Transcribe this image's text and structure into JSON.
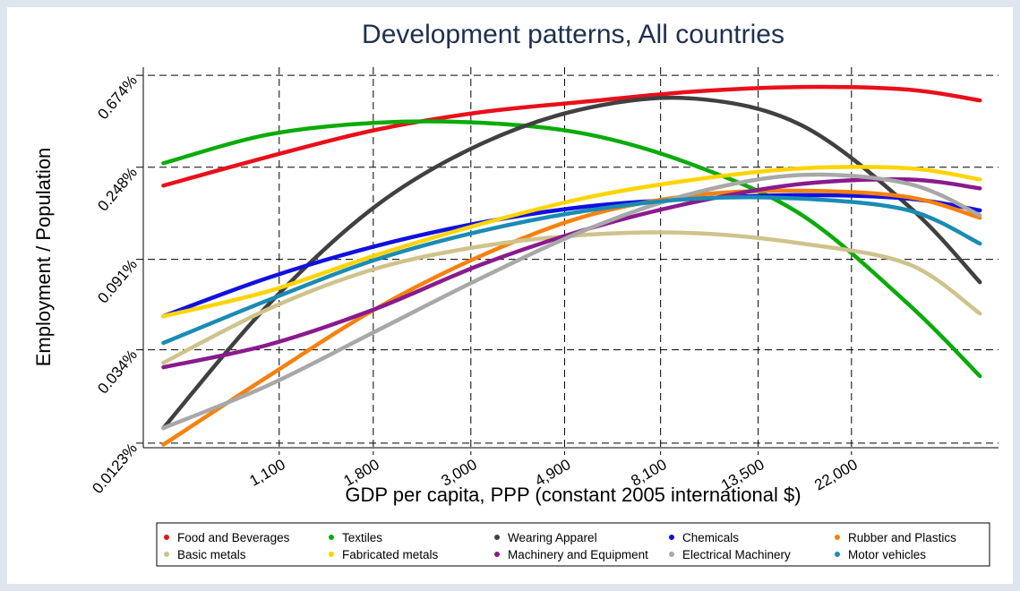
{
  "chart_data": {
    "type": "line",
    "title": "Development patterns, All countries",
    "x_label": "GDP per capita, PPP (constant 2005 international $)",
    "y_label": "Employment / Population",
    "x_scale": "log",
    "y_scale": "log",
    "grid": true,
    "legend": "bottom",
    "xlim": [
      540,
      47500
    ],
    "xticks": [
      {
        "value": 1100,
        "label": "1,100"
      },
      {
        "value": 1800,
        "label": "1,800"
      },
      {
        "value": 3000,
        "label": "3,000"
      },
      {
        "value": 4900,
        "label": "4,900"
      },
      {
        "value": 8100,
        "label": "8,100"
      },
      {
        "value": 13500,
        "label": "13,500"
      },
      {
        "value": 22000,
        "label": "22,000"
      }
    ],
    "ylim": [
      0.0117,
      0.737
    ],
    "yticks": [
      {
        "value": 0.0123,
        "label": "0.0123%"
      },
      {
        "value": 0.034,
        "label": "0.034%"
      },
      {
        "value": 0.091,
        "label": "0.091%"
      },
      {
        "value": 0.248,
        "label": "0.248%"
      },
      {
        "value": 0.674,
        "label": "0.674%"
      }
    ],
    "x": [
      600,
      1040,
      1820,
      3180,
      5560,
      9720,
      17000,
      29700,
      43100
    ],
    "series": [
      {
        "name": "Food and Beverages",
        "color": "#e8101a",
        "values": [
          0.203,
          0.278,
          0.372,
          0.452,
          0.508,
          0.566,
          0.594,
          0.577,
          0.513
        ]
      },
      {
        "name": "Textiles",
        "color": "#0aab0a",
        "values": [
          0.259,
          0.354,
          0.402,
          0.402,
          0.354,
          0.252,
          0.147,
          0.0556,
          0.0255
        ]
      },
      {
        "name": "Wearing Apparel",
        "color": "#404040",
        "values": [
          0.0145,
          0.0556,
          0.162,
          0.321,
          0.474,
          0.523,
          0.39,
          0.162,
          0.0709
        ]
      },
      {
        "name": "Chemicals",
        "color": "#1010e0",
        "values": [
          0.049,
          0.0745,
          0.105,
          0.136,
          0.162,
          0.176,
          0.183,
          0.176,
          0.155
        ]
      },
      {
        "name": "Rubber and Plastics",
        "color": "#f7810f",
        "values": [
          0.0121,
          0.0255,
          0.053,
          0.095,
          0.147,
          0.183,
          0.192,
          0.179,
          0.143
        ]
      },
      {
        "name": "Basic metals",
        "color": "#cfc38c",
        "values": [
          0.0295,
          0.053,
          0.0821,
          0.105,
          0.119,
          0.121,
          0.108,
          0.0862,
          0.0504
        ]
      },
      {
        "name": "Fabricated metals",
        "color": "#ffd400",
        "values": [
          0.049,
          0.0643,
          0.095,
          0.134,
          0.179,
          0.217,
          0.245,
          0.245,
          0.217
        ]
      },
      {
        "name": "Machinery and Equipment",
        "color": "#8a1a8e",
        "values": [
          0.0281,
          0.0359,
          0.053,
          0.0862,
          0.127,
          0.17,
          0.207,
          0.217,
          0.197
        ]
      },
      {
        "name": "Electrical Machinery",
        "color": "#a8a8a8",
        "values": [
          0.0145,
          0.0231,
          0.0415,
          0.0745,
          0.127,
          0.188,
          0.228,
          0.207,
          0.147
        ]
      },
      {
        "name": "Motor vehicles",
        "color": "#1a8cb4",
        "values": [
          0.0366,
          0.0584,
          0.0905,
          0.124,
          0.155,
          0.176,
          0.176,
          0.155,
          0.108
        ]
      }
    ]
  }
}
